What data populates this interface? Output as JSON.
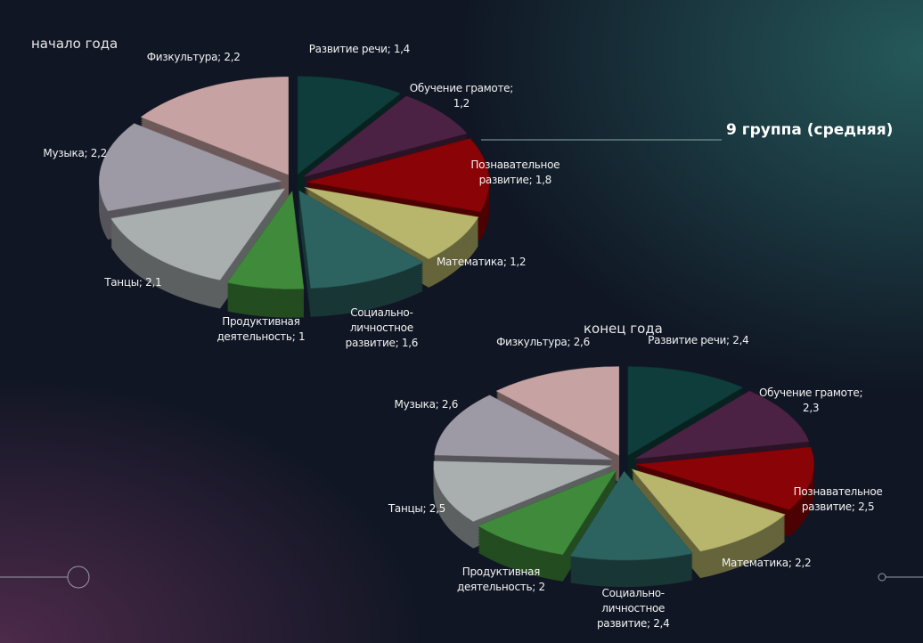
{
  "slide_title": "9 группа (средняя)",
  "chart_data": [
    {
      "type": "pie",
      "title": "начало года",
      "labels": [
        "Развитие речи; 1,4",
        "Обучение грамоте; 1,2",
        "Познавательное развитие; 1,8",
        "Математика; 1,2",
        "Социально-личностное развитие; 1,6",
        "Продуктивная деятельность; 1",
        "Танцы; 2,1",
        "Музыка; 2,2",
        "Физкультура; 2,2"
      ],
      "values": [
        1.4,
        1.2,
        1.8,
        1.2,
        1.6,
        1,
        2.1,
        2.2,
        2.2
      ],
      "colors": [
        "#0e3d3b",
        "#4b2243",
        "#8a0306",
        "#b8b56c",
        "#2c6361",
        "#3f8b3b",
        "#a9afae",
        "#9d99a5",
        "#c7a2a2"
      ]
    },
    {
      "type": "pie",
      "title": "конец года",
      "labels": [
        "Развитие речи; 2,4",
        "Обучение грамоте; 2,3",
        "Познавательное развитие; 2,5",
        "Математика; 2,2",
        "Социально-личностное развитие; 2,4",
        "Продуктивная деятельность; 2",
        "Танцы; 2,5",
        "Музыка; 2,6",
        "Физкультура; 2,6"
      ],
      "values": [
        2.4,
        2.3,
        2.5,
        2.2,
        2.4,
        2,
        2.5,
        2.6,
        2.6
      ],
      "colors": [
        "#0e3d3b",
        "#4b2243",
        "#8a0306",
        "#b8b56c",
        "#2c6361",
        "#3f8b3b",
        "#a9afae",
        "#9d99a5",
        "#c7a2a2"
      ]
    }
  ]
}
